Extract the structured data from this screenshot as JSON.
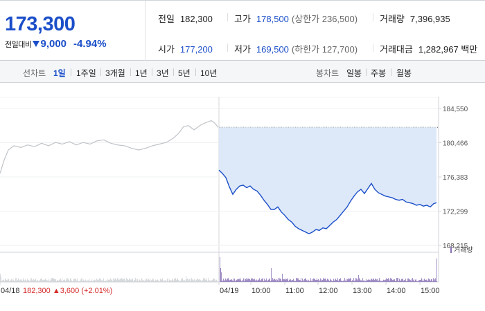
{
  "summary": {
    "current_price": "173,300",
    "change_label": "전일대비",
    "change_value": "9,000",
    "change_pct": "-4.94%",
    "direction_icon": "triangle-down-icon",
    "colors": {
      "down": "#1a4ec9",
      "up": "#d62b2b"
    }
  },
  "stats": {
    "prev_close": {
      "label": "전일",
      "value": "182,300"
    },
    "high": {
      "label": "고가",
      "value": "178,500",
      "sub": "(상한가 236,500)"
    },
    "volume": {
      "label": "거래량",
      "value": "7,396,935"
    },
    "open": {
      "label": "시가",
      "value": "177,200"
    },
    "low": {
      "label": "저가",
      "value": "169,500",
      "sub": "(하한가 127,700)"
    },
    "turnover": {
      "label": "거래대금",
      "value": "1,282,967 백만"
    }
  },
  "toolbar": {
    "line_chart_label": "선차트",
    "periods": [
      "1일",
      "1주일",
      "3개월",
      "1년",
      "3년",
      "5년",
      "10년"
    ],
    "active_period": "1일",
    "candle_chart_label": "봉차트",
    "candle_periods": [
      "일봉",
      "주봉",
      "월봉"
    ]
  },
  "chart_data": {
    "type": "line",
    "ylim": [
      168215,
      184550
    ],
    "yticks": [
      "184,550",
      "180,466",
      "176,383",
      "172,299",
      "168,215"
    ],
    "ytick_values": [
      184550,
      180466,
      176383,
      172299,
      168215
    ],
    "x_labels": [
      "04/18",
      "04/19",
      "10:00",
      "11:00",
      "12:00",
      "13:00",
      "14:00",
      "15:00"
    ],
    "prev_day_note": {
      "close": "182,300",
      "change": "3,600",
      "change_pct": "(+2.01%)"
    },
    "reference_close": 182300,
    "volume_legend": "거래량",
    "series": [
      {
        "date": "04/18",
        "points": [
          [
            0,
            176800
          ],
          [
            6,
            178400
          ],
          [
            12,
            179600
          ],
          [
            20,
            180100
          ],
          [
            30,
            179900
          ],
          [
            40,
            180200
          ],
          [
            50,
            180000
          ],
          [
            60,
            180400
          ],
          [
            70,
            180100
          ],
          [
            80,
            180500
          ],
          [
            90,
            180300
          ],
          [
            100,
            180600
          ],
          [
            110,
            180200
          ],
          [
            120,
            180500
          ],
          [
            130,
            180300
          ],
          [
            140,
            180700
          ],
          [
            150,
            180800
          ],
          [
            160,
            180400
          ],
          [
            170,
            180200
          ],
          [
            180,
            180100
          ],
          [
            190,
            179800
          ],
          [
            200,
            179600
          ],
          [
            210,
            179800
          ],
          [
            220,
            180100
          ],
          [
            230,
            180300
          ],
          [
            240,
            180500
          ],
          [
            250,
            181000
          ],
          [
            258,
            181600
          ],
          [
            265,
            182400
          ],
          [
            272,
            182500
          ],
          [
            280,
            182000
          ],
          [
            290,
            182600
          ],
          [
            298,
            182900
          ],
          [
            305,
            183100
          ],
          [
            310,
            182800
          ],
          [
            315,
            182300
          ]
        ]
      },
      {
        "date": "04/19",
        "points": [
          [
            0,
            177200
          ],
          [
            5,
            176800
          ],
          [
            10,
            176300
          ],
          [
            15,
            175200
          ],
          [
            20,
            174300
          ],
          [
            25,
            174900
          ],
          [
            30,
            175300
          ],
          [
            35,
            175400
          ],
          [
            40,
            175100
          ],
          [
            45,
            175300
          ],
          [
            50,
            174900
          ],
          [
            55,
            174700
          ],
          [
            60,
            174200
          ],
          [
            65,
            173600
          ],
          [
            70,
            173100
          ],
          [
            75,
            172500
          ],
          [
            80,
            172500
          ],
          [
            85,
            172800
          ],
          [
            90,
            172200
          ],
          [
            95,
            171800
          ],
          [
            100,
            171300
          ],
          [
            105,
            171000
          ],
          [
            110,
            170500
          ],
          [
            115,
            170200
          ],
          [
            120,
            170000
          ],
          [
            125,
            169800
          ],
          [
            130,
            169600
          ],
          [
            135,
            169800
          ],
          [
            140,
            170100
          ],
          [
            145,
            170000
          ],
          [
            150,
            170300
          ],
          [
            155,
            170200
          ],
          [
            160,
            170600
          ],
          [
            165,
            171000
          ],
          [
            170,
            171300
          ],
          [
            175,
            171800
          ],
          [
            180,
            172300
          ],
          [
            185,
            172800
          ],
          [
            190,
            173500
          ],
          [
            195,
            174100
          ],
          [
            200,
            174600
          ],
          [
            205,
            174900
          ],
          [
            210,
            174400
          ],
          [
            215,
            175000
          ],
          [
            220,
            175600
          ],
          [
            225,
            174900
          ],
          [
            230,
            174500
          ],
          [
            235,
            174300
          ],
          [
            240,
            174100
          ],
          [
            245,
            174000
          ],
          [
            250,
            173900
          ],
          [
            255,
            173700
          ],
          [
            260,
            173600
          ],
          [
            265,
            173700
          ],
          [
            270,
            173400
          ],
          [
            275,
            173300
          ],
          [
            280,
            173200
          ],
          [
            285,
            173000
          ],
          [
            290,
            173100
          ],
          [
            295,
            172900
          ],
          [
            300,
            173000
          ],
          [
            305,
            172800
          ],
          [
            310,
            173200
          ],
          [
            314,
            173300
          ]
        ]
      }
    ]
  }
}
